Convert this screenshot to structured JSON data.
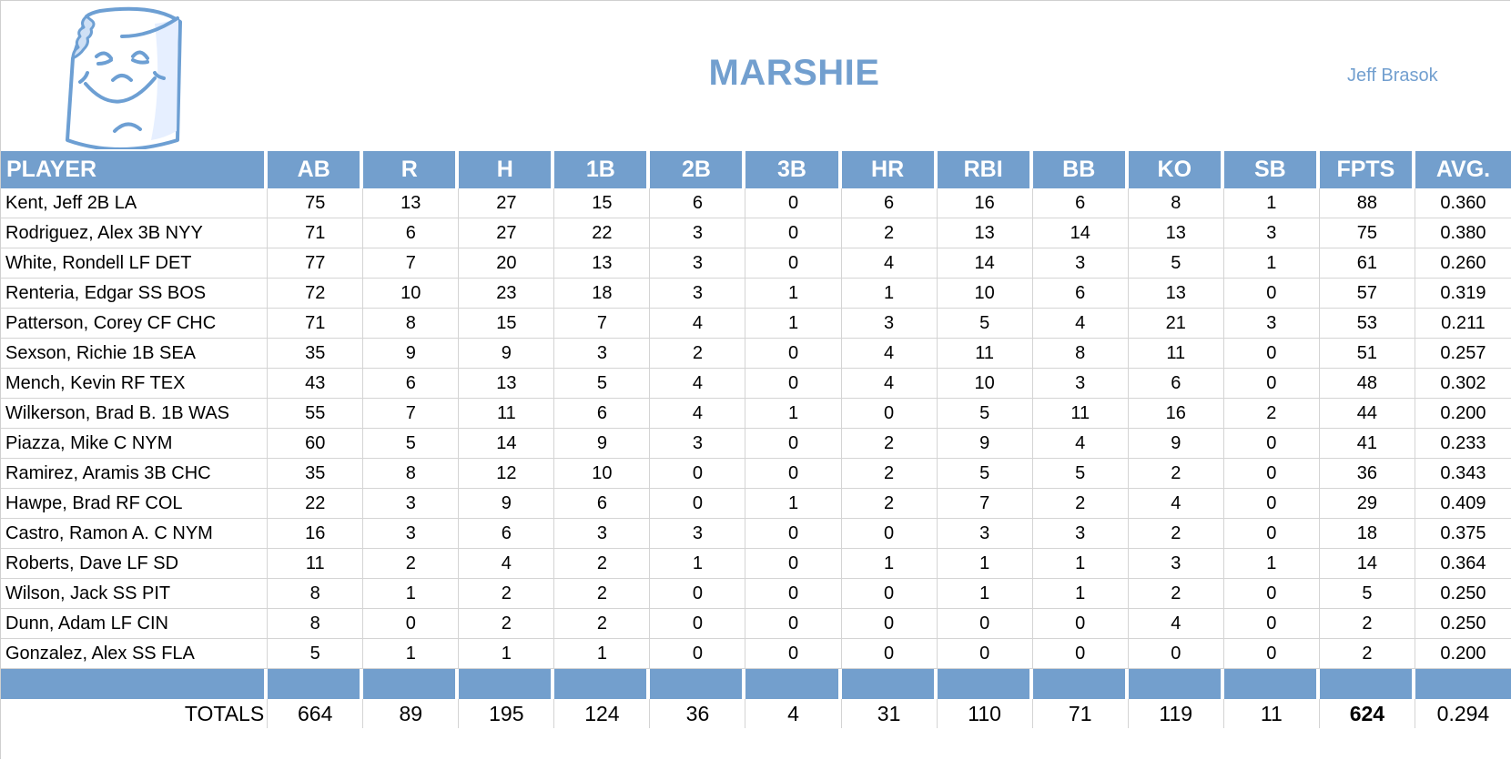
{
  "header": {
    "title": "MARSHIE",
    "owner": "Jeff Brasok",
    "logo_icon": "marshmallow-mascot-icon"
  },
  "colors": {
    "accent": "#739fcd",
    "title_text": "#729fcf",
    "grid_line": "#d4d4d4"
  },
  "table": {
    "columns": [
      "PLAYER",
      "AB",
      "R",
      "H",
      "1B",
      "2B",
      "3B",
      "HR",
      "RBI",
      "BB",
      "KO",
      "SB",
      "FPTS",
      "AVG."
    ],
    "rows": [
      {
        "player": "Kent, Jeff 2B LA",
        "ab": "75",
        "r": "13",
        "h": "27",
        "b1": "15",
        "b2": "6",
        "b3": "0",
        "hr": "6",
        "rbi": "16",
        "bb": "6",
        "ko": "8",
        "sb": "1",
        "fpts": "88",
        "avg": "0.360"
      },
      {
        "player": "Rodriguez, Alex 3B NYY",
        "ab": "71",
        "r": "6",
        "h": "27",
        "b1": "22",
        "b2": "3",
        "b3": "0",
        "hr": "2",
        "rbi": "13",
        "bb": "14",
        "ko": "13",
        "sb": "3",
        "fpts": "75",
        "avg": "0.380"
      },
      {
        "player": "White, Rondell LF DET",
        "ab": "77",
        "r": "7",
        "h": "20",
        "b1": "13",
        "b2": "3",
        "b3": "0",
        "hr": "4",
        "rbi": "14",
        "bb": "3",
        "ko": "5",
        "sb": "1",
        "fpts": "61",
        "avg": "0.260"
      },
      {
        "player": "Renteria, Edgar SS BOS",
        "ab": "72",
        "r": "10",
        "h": "23",
        "b1": "18",
        "b2": "3",
        "b3": "1",
        "hr": "1",
        "rbi": "10",
        "bb": "6",
        "ko": "13",
        "sb": "0",
        "fpts": "57",
        "avg": "0.319"
      },
      {
        "player": "Patterson, Corey CF CHC",
        "ab": "71",
        "r": "8",
        "h": "15",
        "b1": "7",
        "b2": "4",
        "b3": "1",
        "hr": "3",
        "rbi": "5",
        "bb": "4",
        "ko": "21",
        "sb": "3",
        "fpts": "53",
        "avg": "0.211"
      },
      {
        "player": "Sexson, Richie 1B SEA",
        "ab": "35",
        "r": "9",
        "h": "9",
        "b1": "3",
        "b2": "2",
        "b3": "0",
        "hr": "4",
        "rbi": "11",
        "bb": "8",
        "ko": "11",
        "sb": "0",
        "fpts": "51",
        "avg": "0.257"
      },
      {
        "player": "Mench, Kevin RF TEX",
        "ab": "43",
        "r": "6",
        "h": "13",
        "b1": "5",
        "b2": "4",
        "b3": "0",
        "hr": "4",
        "rbi": "10",
        "bb": "3",
        "ko": "6",
        "sb": "0",
        "fpts": "48",
        "avg": "0.302"
      },
      {
        "player": "Wilkerson, Brad B. 1B WAS",
        "ab": "55",
        "r": "7",
        "h": "11",
        "b1": "6",
        "b2": "4",
        "b3": "1",
        "hr": "0",
        "rbi": "5",
        "bb": "11",
        "ko": "16",
        "sb": "2",
        "fpts": "44",
        "avg": "0.200"
      },
      {
        "player": "Piazza, Mike C NYM",
        "ab": "60",
        "r": "5",
        "h": "14",
        "b1": "9",
        "b2": "3",
        "b3": "0",
        "hr": "2",
        "rbi": "9",
        "bb": "4",
        "ko": "9",
        "sb": "0",
        "fpts": "41",
        "avg": "0.233"
      },
      {
        "player": "Ramirez, Aramis 3B CHC",
        "ab": "35",
        "r": "8",
        "h": "12",
        "b1": "10",
        "b2": "0",
        "b3": "0",
        "hr": "2",
        "rbi": "5",
        "bb": "5",
        "ko": "2",
        "sb": "0",
        "fpts": "36",
        "avg": "0.343"
      },
      {
        "player": "Hawpe, Brad RF COL",
        "ab": "22",
        "r": "3",
        "h": "9",
        "b1": "6",
        "b2": "0",
        "b3": "1",
        "hr": "2",
        "rbi": "7",
        "bb": "2",
        "ko": "4",
        "sb": "0",
        "fpts": "29",
        "avg": "0.409"
      },
      {
        "player": "Castro, Ramon A. C NYM",
        "ab": "16",
        "r": "3",
        "h": "6",
        "b1": "3",
        "b2": "3",
        "b3": "0",
        "hr": "0",
        "rbi": "3",
        "bb": "3",
        "ko": "2",
        "sb": "0",
        "fpts": "18",
        "avg": "0.375"
      },
      {
        "player": "Roberts, Dave LF SD",
        "ab": "11",
        "r": "2",
        "h": "4",
        "b1": "2",
        "b2": "1",
        "b3": "0",
        "hr": "1",
        "rbi": "1",
        "bb": "1",
        "ko": "3",
        "sb": "1",
        "fpts": "14",
        "avg": "0.364"
      },
      {
        "player": "Wilson, Jack SS PIT",
        "ab": "8",
        "r": "1",
        "h": "2",
        "b1": "2",
        "b2": "0",
        "b3": "0",
        "hr": "0",
        "rbi": "1",
        "bb": "1",
        "ko": "2",
        "sb": "0",
        "fpts": "5",
        "avg": "0.250"
      },
      {
        "player": "Dunn, Adam LF CIN",
        "ab": "8",
        "r": "0",
        "h": "2",
        "b1": "2",
        "b2": "0",
        "b3": "0",
        "hr": "0",
        "rbi": "0",
        "bb": "0",
        "ko": "4",
        "sb": "0",
        "fpts": "2",
        "avg": "0.250"
      },
      {
        "player": "Gonzalez, Alex SS FLA",
        "ab": "5",
        "r": "1",
        "h": "1",
        "b1": "1",
        "b2": "0",
        "b3": "0",
        "hr": "0",
        "rbi": "0",
        "bb": "0",
        "ko": "0",
        "sb": "0",
        "fpts": "2",
        "avg": "0.200"
      }
    ],
    "totals": {
      "label": "TOTALS",
      "ab": "664",
      "r": "89",
      "h": "195",
      "b1": "124",
      "b2": "36",
      "b3": "4",
      "hr": "31",
      "rbi": "110",
      "bb": "71",
      "ko": "119",
      "sb": "11",
      "fpts": "624",
      "avg": "0.294"
    }
  }
}
